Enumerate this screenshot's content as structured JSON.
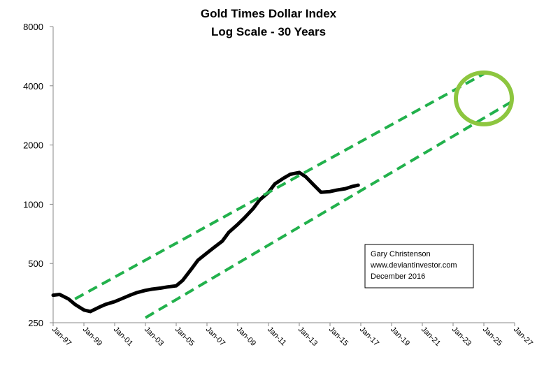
{
  "chart_data": {
    "type": "line",
    "title": "Gold Times Dollar Index",
    "subtitle": "Log Scale - 30 Years",
    "y_scale": "log",
    "ylim": [
      250,
      8000
    ],
    "y_ticks": [
      250,
      500,
      1000,
      2000,
      4000,
      8000
    ],
    "y_tick_labels": [
      "250",
      "500",
      "1000",
      "2000",
      "4000",
      "8000"
    ],
    "xlim": [
      "1997-01",
      "2027-01"
    ],
    "x_ticks": [
      "1997-01",
      "1999-01",
      "2001-01",
      "2003-01",
      "2005-01",
      "2007-01",
      "2009-01",
      "2011-01",
      "2013-01",
      "2015-01",
      "2017-01",
      "2019-01",
      "2021-01",
      "2023-01",
      "2025-01",
      "2027-01"
    ],
    "x_tick_labels": [
      "Jan-97",
      "Jan-99",
      "Jan-01",
      "Jan-03",
      "Jan-05",
      "Jan-07",
      "Jan-09",
      "Jan-11",
      "Jan-13",
      "Jan-15",
      "Jan-17",
      "Jan-19",
      "Jan-21",
      "Jan-23",
      "Jan-25",
      "Jan-27"
    ],
    "grid": false,
    "series": [
      {
        "color": "#000000",
        "x": [
          "1997-01",
          "1997-06",
          "1998-01",
          "1998-06",
          "1999-01",
          "1999-06",
          "2000-01",
          "2000-06",
          "2001-01",
          "2001-06",
          "2002-01",
          "2002-06",
          "2003-01",
          "2003-06",
          "2004-01",
          "2004-06",
          "2005-01",
          "2005-06",
          "2006-01",
          "2006-06",
          "2007-01",
          "2007-06",
          "2008-01",
          "2008-06",
          "2009-01",
          "2009-06",
          "2010-01",
          "2010-06",
          "2011-01",
          "2011-06",
          "2012-01",
          "2012-06",
          "2013-01",
          "2013-06",
          "2014-01",
          "2014-06",
          "2015-01",
          "2015-06",
          "2016-01",
          "2016-06",
          "2016-11"
        ],
        "y": [
          345,
          348,
          330,
          310,
          290,
          285,
          300,
          310,
          320,
          330,
          345,
          355,
          365,
          370,
          375,
          380,
          385,
          410,
          470,
          520,
          565,
          600,
          650,
          720,
          790,
          850,
          950,
          1050,
          1150,
          1270,
          1360,
          1420,
          1450,
          1380,
          1240,
          1150,
          1160,
          1180,
          1200,
          1230,
          1250
        ]
      },
      {
        "color": "#22b14c",
        "style": "dashed",
        "x": [
          "1998-06",
          "2025-01"
        ],
        "y": [
          330,
          4600
        ]
      },
      {
        "color": "#22b14c",
        "style": "dashed",
        "x": [
          "2003-01",
          "2026-10"
        ],
        "y": [
          265,
          3300
        ]
      }
    ],
    "annotations": {
      "box_lines": [
        "Gary Christenson",
        "www.deviantinvestor.com",
        "December 2016"
      ],
      "circle": {
        "center": [
          "2025-01",
          3450
        ],
        "color": "#8dc63f"
      }
    }
  }
}
